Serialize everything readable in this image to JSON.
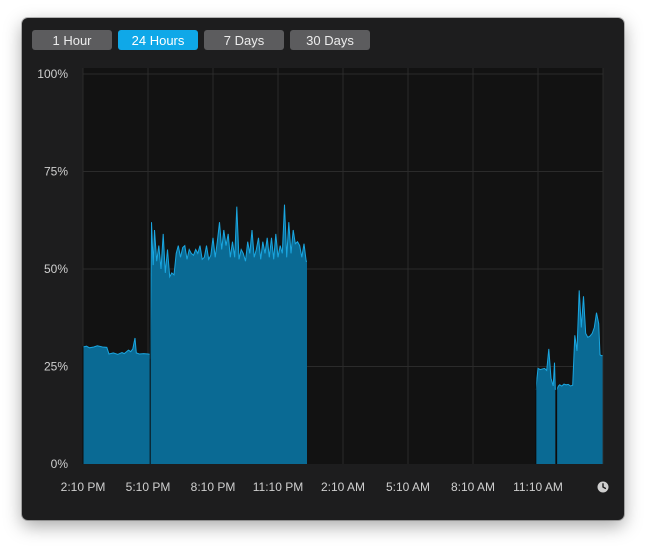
{
  "toolbar": {
    "buttons": [
      {
        "label": "1 Hour",
        "active": false
      },
      {
        "label": "24 Hours",
        "active": true
      },
      {
        "label": "7 Days",
        "active": false
      },
      {
        "label": "30 Days",
        "active": false
      }
    ]
  },
  "colors": {
    "background": "#1d1d1e",
    "plot_background": "#121212",
    "area_fill": "#0a6a94",
    "area_stroke": "#1aa6e0",
    "active_button": "#0fa8e8",
    "inactive_button": "#5c5c5e",
    "grid": "#2b2b2b"
  },
  "clock_icon": "clock-icon",
  "chart_data": {
    "type": "area",
    "title": "",
    "xlabel": "",
    "ylabel": "",
    "ylim": [
      0,
      100
    ],
    "ytick_labels": [
      "0%",
      "25%",
      "50%",
      "75%",
      "100%"
    ],
    "yticks": [
      0,
      25,
      50,
      75,
      100
    ],
    "xtick_labels": [
      "2:10 PM",
      "5:10 PM",
      "8:10 PM",
      "11:10 PM",
      "2:10 AM",
      "5:10 AM",
      "8:10 AM",
      "11:10 AM"
    ],
    "grid": true,
    "segments": [
      {
        "points": [
          [
            0.0,
            30
          ],
          [
            0.08,
            30.2
          ],
          [
            0.15,
            29.8
          ],
          [
            0.25,
            30
          ],
          [
            0.33,
            30.3
          ],
          [
            0.45,
            30
          ],
          [
            0.55,
            29.9
          ],
          [
            0.6,
            28.2
          ],
          [
            0.7,
            28.5
          ],
          [
            0.8,
            28.1
          ],
          [
            0.9,
            28.6
          ],
          [
            0.95,
            28.3
          ],
          [
            1.05,
            29.2
          ],
          [
            1.1,
            28.8
          ],
          [
            1.15,
            29.5
          ],
          [
            1.2,
            32.3
          ],
          [
            1.23,
            28.5
          ],
          [
            1.3,
            28.2
          ],
          [
            1.4,
            28.3
          ],
          [
            1.5,
            28.2
          ],
          [
            1.55,
            28.1
          ]
        ]
      },
      {
        "points": [
          [
            1.55,
            27
          ],
          [
            1.58,
            62
          ],
          [
            1.62,
            51
          ],
          [
            1.65,
            60
          ],
          [
            1.7,
            52
          ],
          [
            1.75,
            56
          ],
          [
            1.8,
            50
          ],
          [
            1.85,
            59
          ],
          [
            1.9,
            49
          ],
          [
            1.95,
            55
          ],
          [
            2.0,
            48
          ],
          [
            2.05,
            49
          ],
          [
            2.1,
            48.5
          ],
          [
            2.15,
            54
          ],
          [
            2.2,
            56
          ],
          [
            2.25,
            53
          ],
          [
            2.3,
            55.5
          ],
          [
            2.35,
            56
          ],
          [
            2.4,
            52.5
          ],
          [
            2.45,
            55
          ],
          [
            2.5,
            54
          ],
          [
            2.55,
            53.5
          ],
          [
            2.6,
            55
          ],
          [
            2.65,
            54
          ],
          [
            2.7,
            56
          ],
          [
            2.75,
            52.5
          ],
          [
            2.8,
            53
          ],
          [
            2.85,
            56
          ],
          [
            2.9,
            52.5
          ],
          [
            2.95,
            53.5
          ],
          [
            3.0,
            58
          ],
          [
            3.05,
            53
          ],
          [
            3.1,
            57
          ],
          [
            3.15,
            62
          ],
          [
            3.2,
            55
          ],
          [
            3.25,
            60
          ],
          [
            3.3,
            56
          ],
          [
            3.35,
            59
          ],
          [
            3.4,
            53
          ],
          [
            3.45,
            57
          ],
          [
            3.5,
            53
          ],
          [
            3.55,
            66
          ],
          [
            3.6,
            52.5
          ],
          [
            3.65,
            55
          ],
          [
            3.7,
            54
          ],
          [
            3.75,
            52
          ],
          [
            3.8,
            57
          ],
          [
            3.85,
            54
          ],
          [
            3.9,
            60
          ],
          [
            3.95,
            53
          ],
          [
            4.0,
            55
          ],
          [
            4.05,
            58
          ],
          [
            4.1,
            52.5
          ],
          [
            4.15,
            57
          ],
          [
            4.2,
            54
          ],
          [
            4.25,
            58
          ],
          [
            4.3,
            53
          ],
          [
            4.35,
            58
          ],
          [
            4.4,
            52.5
          ],
          [
            4.45,
            59
          ],
          [
            4.5,
            53
          ],
          [
            4.55,
            56
          ],
          [
            4.6,
            54
          ],
          [
            4.65,
            66.5
          ],
          [
            4.7,
            53
          ],
          [
            4.75,
            62
          ],
          [
            4.8,
            54
          ],
          [
            4.85,
            60
          ],
          [
            4.9,
            56.5
          ],
          [
            4.95,
            57
          ],
          [
            5.0,
            56
          ],
          [
            5.05,
            53
          ],
          [
            5.1,
            56.5
          ],
          [
            5.15,
            52
          ],
          [
            5.17,
            52
          ]
        ]
      },
      {
        "points": [
          [
            10.45,
            19
          ],
          [
            10.5,
            24.5
          ],
          [
            10.55,
            24.2
          ],
          [
            10.65,
            24.5
          ],
          [
            10.7,
            24
          ],
          [
            10.75,
            29.5
          ],
          [
            10.8,
            22
          ],
          [
            10.85,
            20
          ],
          [
            10.88,
            26
          ],
          [
            10.9,
            19
          ]
        ]
      },
      {
        "points": [
          [
            10.93,
            19
          ],
          [
            10.97,
            20
          ],
          [
            11.0,
            20.3
          ],
          [
            11.05,
            20
          ],
          [
            11.1,
            20.5
          ],
          [
            11.15,
            20.3
          ],
          [
            11.2,
            20.4
          ],
          [
            11.25,
            20
          ],
          [
            11.3,
            20.2
          ],
          [
            11.35,
            33
          ],
          [
            11.4,
            29
          ],
          [
            11.45,
            44.5
          ],
          [
            11.5,
            35
          ],
          [
            11.55,
            43
          ],
          [
            11.6,
            33.5
          ],
          [
            11.65,
            32.5
          ],
          [
            11.7,
            32.8
          ],
          [
            11.75,
            33.5
          ],
          [
            11.8,
            35
          ],
          [
            11.85,
            38.8
          ],
          [
            11.9,
            36
          ],
          [
            11.93,
            28
          ],
          [
            11.96,
            27.8
          ],
          [
            11.99,
            27.8
          ]
        ]
      }
    ],
    "x_range": [
      0,
      12
    ]
  }
}
